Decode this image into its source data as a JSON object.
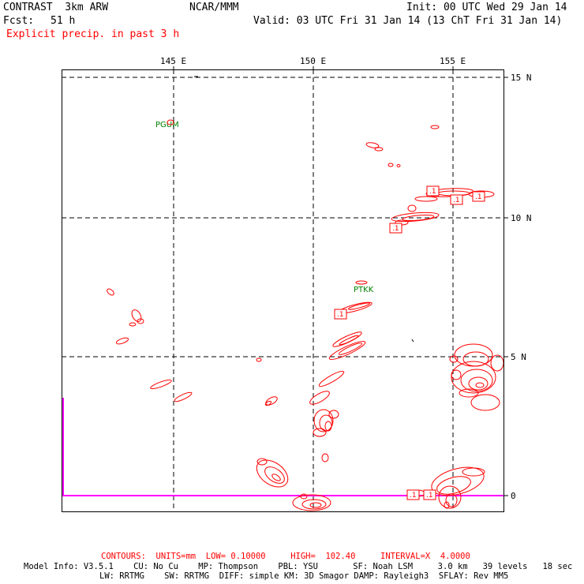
{
  "header": {
    "model": "CONTRAST  3km ARW",
    "center": "NCAR/MMM",
    "init": "Init: 00 UTC Wed 29 Jan 14",
    "fcst_label": "Fcst:",
    "fcst_value": "51 h",
    "valid": "Valid: 03 UTC Fri 31 Jan 14 (13 ChT Fri 31 Jan 14)",
    "field": "Explicit precip. in past 3 h"
  },
  "map": {
    "lon_labels": [
      "145 E",
      "150 E",
      "155 E"
    ],
    "lat_labels": [
      "15 N",
      "10 N",
      "5 N",
      "0"
    ],
    "stations": [
      "PGUM",
      "PTKK"
    ],
    "contour_label": ".1",
    "contour_color": "#ff0000",
    "grid_color": "#000000",
    "boundary_color": "#ff00ff"
  },
  "footer": {
    "contours": "CONTOURS:  UNITS=mm  LOW= 0.10000     HIGH=  102.40     INTERVAL=X  4.0000",
    "model_info_1": "Model Info: V3.5.1    CU: No Cu    MP: Thompson    PBL: YSU       SF: Noah LSM     3.0 km   39 levels   18 sec",
    "model_info_2": "LW: RRTMG    SW: RRTMG  DIFF: simple KM: 3D Smagor DAMP: Rayleigh3  SFLAY: Rev MM5"
  }
}
